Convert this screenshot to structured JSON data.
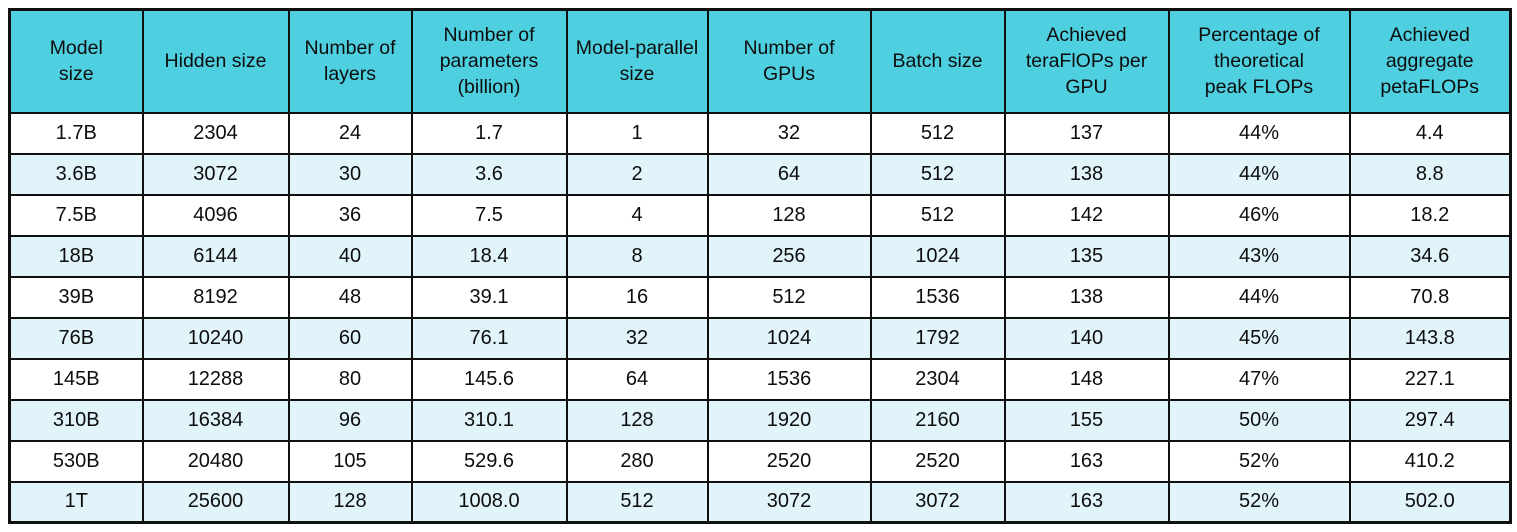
{
  "chart_data": {
    "type": "table",
    "columns": [
      "Model\nsize",
      "Hidden size",
      "Number of\nlayers",
      "Number of\nparameters\n(billion)",
      "Model-parallel\nsize",
      "Number of\nGPUs",
      "Batch size",
      "Achieved\nteraFlOPs per\nGPU",
      "Percentage of\ntheoretical\npeak FLOPs",
      "Achieved\naggregate\npetaFLOPs"
    ],
    "rows": [
      [
        "1.7B",
        "2304",
        "24",
        "1.7",
        "1",
        "32",
        "512",
        "137",
        "44%",
        "4.4"
      ],
      [
        "3.6B",
        "3072",
        "30",
        "3.6",
        "2",
        "64",
        "512",
        "138",
        "44%",
        "8.8"
      ],
      [
        "7.5B",
        "4096",
        "36",
        "7.5",
        "4",
        "128",
        "512",
        "142",
        "46%",
        "18.2"
      ],
      [
        "18B",
        "6144",
        "40",
        "18.4",
        "8",
        "256",
        "1024",
        "135",
        "43%",
        "34.6"
      ],
      [
        "39B",
        "8192",
        "48",
        "39.1",
        "16",
        "512",
        "1536",
        "138",
        "44%",
        "70.8"
      ],
      [
        "76B",
        "10240",
        "60",
        "76.1",
        "32",
        "1024",
        "1792",
        "140",
        "45%",
        "143.8"
      ],
      [
        "145B",
        "12288",
        "80",
        "145.6",
        "64",
        "1536",
        "2304",
        "148",
        "47%",
        "227.1"
      ],
      [
        "310B",
        "16384",
        "96",
        "310.1",
        "128",
        "1920",
        "2160",
        "155",
        "50%",
        "297.4"
      ],
      [
        "530B",
        "20480",
        "105",
        "529.6",
        "280",
        "2520",
        "2520",
        "163",
        "52%",
        "410.2"
      ],
      [
        "1T",
        "25600",
        "128",
        "1008.0",
        "512",
        "3072",
        "3072",
        "163",
        "52%",
        "502.0"
      ]
    ]
  },
  "colors": {
    "header_bg": "#4ed0e0",
    "row_bg": "#ffffff",
    "row_alt_bg": "#e0f4f9",
    "border": "#101010",
    "text": "#0d0d0d"
  }
}
